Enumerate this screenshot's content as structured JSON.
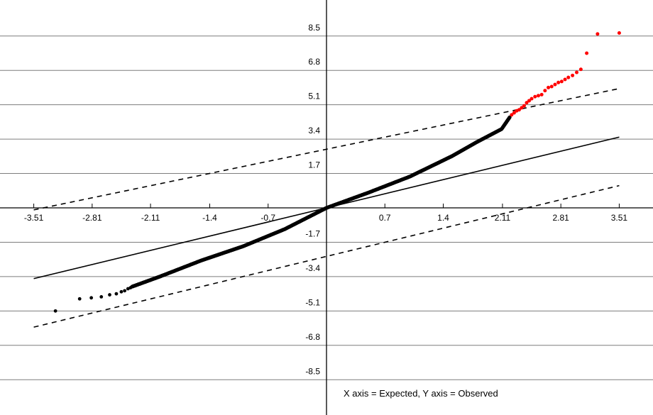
{
  "chart_data": {
    "type": "scatter",
    "caption": "X axis = Expected, Y axis = Observed",
    "xlim": [
      -3.8,
      3.8
    ],
    "ylim": [
      -10.0,
      10.0
    ],
    "grid": "horizontal",
    "x_ticks": [
      "-3.51",
      "-2.81",
      "-2.11",
      "-1.4",
      "-0.7",
      "0.7",
      "1.4",
      "2.11",
      "2.81",
      "3.51"
    ],
    "y_ticks": [
      "8.5",
      "6.8",
      "5.1",
      "3.4",
      "1.7",
      "-1.7",
      "-3.4",
      "-5.1",
      "-6.8",
      "-8.5"
    ],
    "reference_line": {
      "x": [
        -3.51,
        3.51
      ],
      "y": [
        -3.5,
        3.5
      ]
    },
    "upper_band": {
      "x": [
        -3.51,
        3.51
      ],
      "y": [
        -0.1,
        5.9
      ]
    },
    "lower_band": {
      "x": [
        -3.51,
        3.51
      ],
      "y": [
        -5.9,
        1.1
      ]
    },
    "colors": {
      "normal": "#000000",
      "outlier": "#ff0000"
    },
    "series": [
      {
        "color": "#000000",
        "curve": [
          [
            -3.0,
            -4.9
          ],
          [
            -2.7,
            -4.5
          ],
          [
            -2.4,
            -4.0
          ],
          [
            -2.0,
            -3.4
          ],
          [
            -1.5,
            -2.6
          ],
          [
            -1.0,
            -1.9
          ],
          [
            -0.5,
            -1.05
          ],
          [
            0.0,
            0.0
          ],
          [
            0.5,
            0.75
          ],
          [
            1.0,
            1.55
          ],
          [
            1.5,
            2.55
          ],
          [
            1.8,
            3.25
          ],
          [
            2.1,
            3.9
          ],
          [
            2.2,
            4.5
          ]
        ],
        "x": [
          -3.25,
          -2.96,
          -2.82,
          -2.7,
          -2.6,
          -2.52,
          -2.46,
          -2.42,
          -2.38,
          -2.35
        ],
        "y": [
          -5.1,
          -4.5,
          -4.45,
          -4.4,
          -4.3,
          -4.25,
          -4.15,
          -4.1,
          -4.0,
          -3.95
        ]
      },
      {
        "color": "#ff0000",
        "x": [
          2.22,
          2.25,
          2.28,
          2.31,
          2.34,
          2.37,
          2.4,
          2.43,
          2.46,
          2.5,
          2.54,
          2.58,
          2.62,
          2.66,
          2.7,
          2.74,
          2.78,
          2.82,
          2.86,
          2.9,
          2.95,
          3.0,
          3.05,
          3.12,
          3.25,
          3.51
        ],
        "y": [
          4.6,
          4.7,
          4.8,
          4.85,
          4.95,
          5.05,
          5.2,
          5.3,
          5.4,
          5.5,
          5.55,
          5.6,
          5.8,
          5.95,
          6.0,
          6.1,
          6.2,
          6.25,
          6.35,
          6.45,
          6.55,
          6.7,
          6.85,
          7.65,
          8.6,
          8.65
        ]
      }
    ]
  }
}
